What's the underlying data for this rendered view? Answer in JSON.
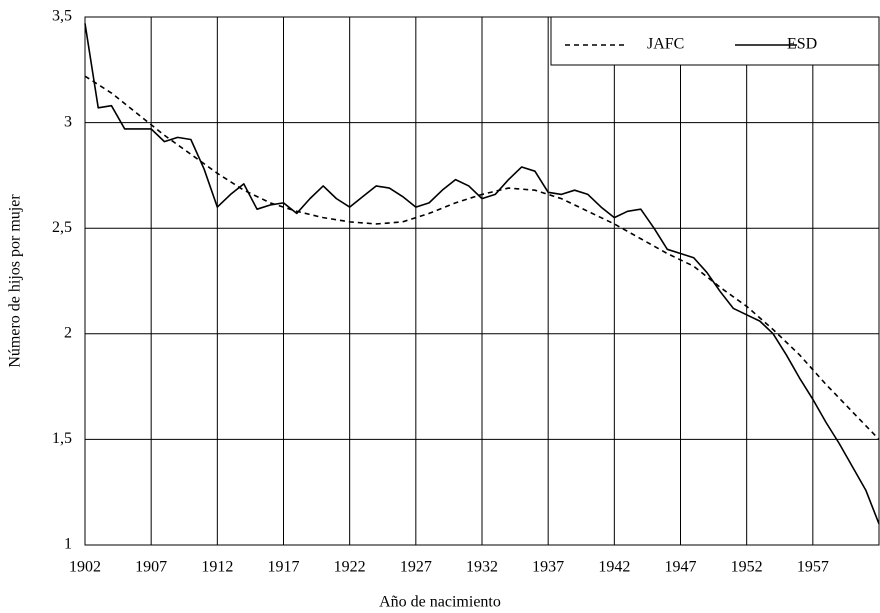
{
  "chart_data": {
    "type": "line",
    "x_label": "Año de nacimiento",
    "y_label": "Número de hijos por mujer",
    "xlim": [
      1902,
      1962
    ],
    "xticks": [
      1902,
      1907,
      1912,
      1917,
      1922,
      1927,
      1932,
      1937,
      1942,
      1947,
      1952,
      1957
    ],
    "ylim": [
      1,
      3.5
    ],
    "yticks": [
      1,
      {
        "value": 1.5,
        "label": "1,5"
      },
      2,
      {
        "value": 2.5,
        "label": "2,5"
      },
      3,
      {
        "value": 3.5,
        "label": "3,5"
      }
    ],
    "grid": true,
    "legend": "top-right",
    "series": [
      {
        "name": "JAFC",
        "color": "#000000",
        "dash": true,
        "x": [
          1902,
          1904,
          1906,
          1908,
          1910,
          1912,
          1914,
          1916,
          1918,
          1920,
          1922,
          1924,
          1926,
          1928,
          1930,
          1932,
          1934,
          1936,
          1938,
          1940,
          1942,
          1944,
          1946,
          1948,
          1950,
          1952,
          1954,
          1956,
          1958,
          1960,
          1962
        ],
        "values": [
          3.22,
          3.14,
          3.04,
          2.94,
          2.85,
          2.76,
          2.68,
          2.62,
          2.58,
          2.55,
          2.53,
          2.52,
          2.53,
          2.57,
          2.62,
          2.66,
          2.69,
          2.68,
          2.64,
          2.58,
          2.52,
          2.45,
          2.38,
          2.32,
          2.22,
          2.13,
          2.02,
          1.9,
          1.76,
          1.63,
          1.5
        ]
      },
      {
        "name": "ESD",
        "color": "#000000",
        "dash": false,
        "x": [
          1902,
          1903,
          1904,
          1905,
          1907,
          1908,
          1909,
          1910,
          1911,
          1912,
          1913,
          1914,
          1915,
          1916,
          1917,
          1918,
          1919,
          1920,
          1921,
          1922,
          1923,
          1924,
          1925,
          1926,
          1927,
          1928,
          1929,
          1930,
          1931,
          1932,
          1933,
          1934,
          1935,
          1936,
          1937,
          1938,
          1939,
          1940,
          1941,
          1942,
          1943,
          1944,
          1945,
          1946,
          1947,
          1948,
          1949,
          1950,
          1951,
          1952,
          1953,
          1954,
          1955,
          1956,
          1957,
          1958,
          1959,
          1960,
          1961,
          1962
        ],
        "values": [
          3.47,
          3.07,
          3.08,
          2.97,
          2.97,
          2.91,
          2.93,
          2.92,
          2.78,
          2.6,
          2.66,
          2.71,
          2.59,
          2.61,
          2.62,
          2.57,
          2.64,
          2.7,
          2.64,
          2.6,
          2.65,
          2.7,
          2.69,
          2.65,
          2.6,
          2.62,
          2.68,
          2.73,
          2.7,
          2.64,
          2.66,
          2.73,
          2.79,
          2.77,
          2.67,
          2.66,
          2.68,
          2.66,
          2.6,
          2.55,
          2.58,
          2.59,
          2.5,
          2.4,
          2.38,
          2.36,
          2.29,
          2.2,
          2.12,
          2.09,
          2.06,
          2.0,
          1.9,
          1.79,
          1.69,
          1.58,
          1.48,
          1.37,
          1.26,
          1.1
        ]
      }
    ]
  }
}
